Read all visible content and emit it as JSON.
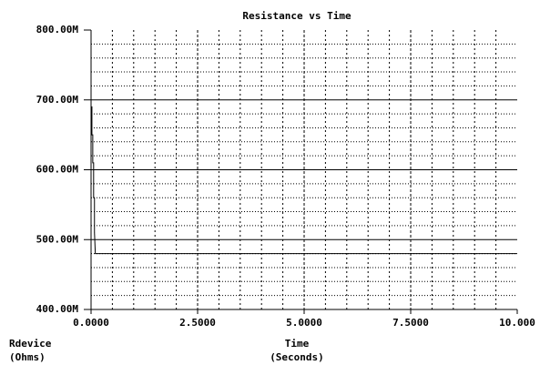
{
  "chart_data": {
    "type": "line",
    "title": "Resistance vs Time",
    "xlabel": "Time",
    "xunit": "(Seconds)",
    "ylabel": "Rdevice",
    "yunit": "(Ohms)",
    "x": [
      0,
      0.02,
      0.02,
      0.04,
      0.04,
      0.06,
      0.06,
      0.08,
      0.08,
      0.1,
      10
    ],
    "values": [
      690000000,
      690000000,
      650000000,
      650000000,
      610000000,
      610000000,
      560000000,
      560000000,
      510000000,
      480000000,
      480000000
    ],
    "color": "#000000",
    "xlim": [
      0,
      10
    ],
    "xticks": [
      {
        "value": 0,
        "label": "0.0000"
      },
      {
        "value": 2.5,
        "label": "2.5000"
      },
      {
        "value": 5,
        "label": "5.0000"
      },
      {
        "value": 7.5,
        "label": "7.5000"
      },
      {
        "value": 10,
        "label": "10.000"
      }
    ],
    "minor_xticks": [
      0.5,
      1,
      1.5,
      2,
      3,
      3.5,
      4,
      4.5,
      5.5,
      6,
      6.5,
      7,
      8,
      8.5,
      9,
      9.5
    ],
    "ylim": [
      400000000,
      800000000
    ],
    "yticks": [
      {
        "value": 400000000,
        "label": "400.00M"
      },
      {
        "value": 500000000,
        "label": "500.00M"
      },
      {
        "value": 600000000,
        "label": "600.00M"
      },
      {
        "value": 700000000,
        "label": "700.00M"
      },
      {
        "value": 800000000,
        "label": "800.00M"
      }
    ],
    "minor_yticks": [
      420000000,
      440000000,
      460000000,
      480000000,
      520000000,
      540000000,
      560000000,
      580000000,
      620000000,
      640000000,
      660000000,
      680000000,
      720000000,
      740000000,
      760000000,
      780000000
    ],
    "grid": true
  }
}
